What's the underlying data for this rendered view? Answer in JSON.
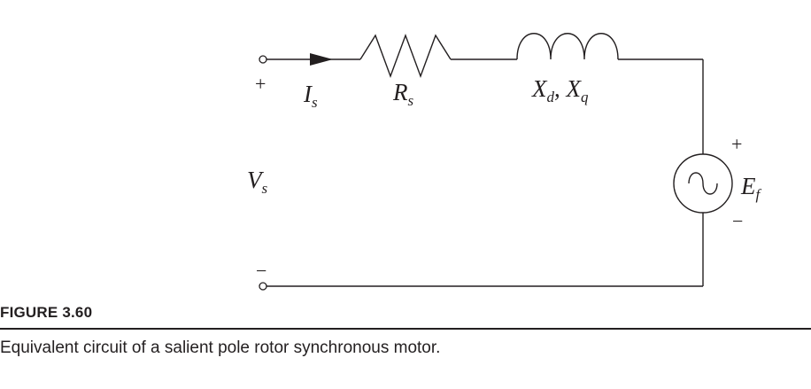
{
  "figure": {
    "label": "FIGURE 3.60",
    "caption": "Equivalent circuit of a salient pole rotor synchronous motor."
  },
  "circuit": {
    "current": {
      "main": "I",
      "sub": "s"
    },
    "resistance": {
      "main": "R",
      "sub": "s"
    },
    "reactance": {
      "main1": "X",
      "sub1": "d",
      "sep": ", ",
      "main2": "X",
      "sub2": "q"
    },
    "voltage": {
      "main": "V",
      "sub": "s"
    },
    "emf": {
      "main": "E",
      "sub": "f"
    },
    "plus": "+",
    "minus": "−",
    "colors": {
      "ink": "#231f20"
    }
  }
}
